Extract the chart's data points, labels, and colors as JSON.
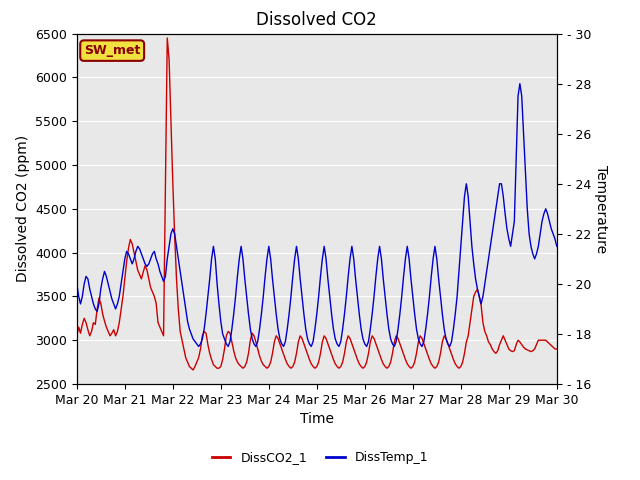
{
  "title": "Dissolved CO2",
  "xlabel": "Time",
  "ylabel_left": "Dissolved CO2 (ppm)",
  "ylabel_right": "Temperature",
  "ylim_left": [
    2500,
    6500
  ],
  "ylim_right": [
    16,
    30
  ],
  "yticks_left": [
    2500,
    3000,
    3500,
    4000,
    4500,
    5000,
    5500,
    6000,
    6500
  ],
  "yticks_right": [
    16,
    18,
    20,
    22,
    24,
    26,
    28,
    30
  ],
  "xtick_labels": [
    "Mar 20",
    "Mar 21",
    "Mar 22",
    "Mar 23",
    "Mar 24",
    "Mar 25",
    "Mar 26",
    "Mar 27",
    "Mar 28",
    "Mar 29",
    "Mar 30"
  ],
  "label_box": "SW_met",
  "legend_labels": [
    "DissCO2_1",
    "DissTemp_1"
  ],
  "line_colors": [
    "#cc0000",
    "#0000cc"
  ],
  "background_color": "#e8e8e8",
  "title_fontsize": 12,
  "axis_fontsize": 10,
  "tick_fontsize": 9,
  "co2_data": [
    3050,
    3150,
    3080,
    3180,
    3250,
    3200,
    3120,
    3050,
    3100,
    3200,
    3180,
    3350,
    3480,
    3420,
    3300,
    3220,
    3150,
    3100,
    3050,
    3080,
    3120,
    3050,
    3100,
    3200,
    3350,
    3500,
    3700,
    3900,
    4050,
    4150,
    4100,
    4000,
    3900,
    3800,
    3750,
    3700,
    3780,
    3850,
    3800,
    3700,
    3600,
    3550,
    3500,
    3420,
    3200,
    3150,
    3100,
    3050,
    4800,
    6450,
    6200,
    5500,
    4800,
    4200,
    3700,
    3350,
    3100,
    3000,
    2900,
    2800,
    2750,
    2700,
    2680,
    2660,
    2700,
    2750,
    2800,
    2900,
    3050,
    3100,
    3080,
    2950,
    2850,
    2780,
    2720,
    2700,
    2680,
    2680,
    2700,
    2780,
    2900,
    3050,
    3100,
    3080,
    2980,
    2880,
    2800,
    2750,
    2720,
    2700,
    2680,
    2700,
    2750,
    2850,
    3000,
    3080,
    3050,
    2980,
    2900,
    2820,
    2760,
    2720,
    2700,
    2680,
    2700,
    2750,
    2850,
    2980,
    3050,
    3020,
    2960,
    2900,
    2840,
    2780,
    2730,
    2700,
    2680,
    2700,
    2750,
    2850,
    2980,
    3050,
    3020,
    2960,
    2900,
    2840,
    2780,
    2730,
    2700,
    2680,
    2700,
    2750,
    2850,
    2980,
    3050,
    3020,
    2960,
    2900,
    2840,
    2780,
    2730,
    2700,
    2680,
    2700,
    2750,
    2850,
    2980,
    3050,
    3020,
    2960,
    2900,
    2840,
    2780,
    2730,
    2700,
    2680,
    2700,
    2750,
    2850,
    2980,
    3050,
    3020,
    2960,
    2900,
    2840,
    2780,
    2730,
    2700,
    2680,
    2700,
    2750,
    2850,
    2980,
    3050,
    3020,
    2960,
    2900,
    2840,
    2780,
    2730,
    2700,
    2680,
    2700,
    2750,
    2850,
    2980,
    3050,
    3020,
    2960,
    2900,
    2840,
    2780,
    2730,
    2700,
    2680,
    2700,
    2750,
    2850,
    2980,
    3050,
    3020,
    2960,
    2900,
    2840,
    2780,
    2730,
    2700,
    2680,
    2700,
    2750,
    2850,
    2980,
    3050,
    3200,
    3350,
    3500,
    3550,
    3580,
    3500,
    3400,
    3200,
    3100,
    3050,
    2980,
    2950,
    2900,
    2870,
    2850,
    2880,
    2950,
    3000,
    3050,
    3000,
    2950,
    2900,
    2880,
    2870,
    2880,
    2950,
    3000,
    2980,
    2950,
    2920,
    2900,
    2890,
    2880,
    2870,
    2880,
    2900,
    2950,
    3000,
    3000,
    3000,
    3000,
    3000,
    2980,
    2960,
    2940,
    2920,
    2900,
    2900
  ],
  "temp_data": [
    20.0,
    19.5,
    19.2,
    19.5,
    20.0,
    20.3,
    20.2,
    19.8,
    19.5,
    19.2,
    19.0,
    18.9,
    19.2,
    19.8,
    20.2,
    20.5,
    20.3,
    20.0,
    19.7,
    19.4,
    19.2,
    19.0,
    19.2,
    19.5,
    20.0,
    20.5,
    21.0,
    21.3,
    21.2,
    21.0,
    20.8,
    21.0,
    21.3,
    21.5,
    21.4,
    21.2,
    21.0,
    20.8,
    20.7,
    20.8,
    21.0,
    21.2,
    21.3,
    21.0,
    20.8,
    20.5,
    20.3,
    20.1,
    20.3,
    21.0,
    21.5,
    22.0,
    22.2,
    22.0,
    21.5,
    21.0,
    20.5,
    20.0,
    19.5,
    19.0,
    18.5,
    18.2,
    18.0,
    17.8,
    17.7,
    17.6,
    17.5,
    17.6,
    17.8,
    18.2,
    18.8,
    19.5,
    20.2,
    21.0,
    21.5,
    21.0,
    20.0,
    19.2,
    18.5,
    18.0,
    17.8,
    17.6,
    17.5,
    17.7,
    18.2,
    18.8,
    19.5,
    20.3,
    21.0,
    21.5,
    21.0,
    20.2,
    19.5,
    18.8,
    18.2,
    17.8,
    17.6,
    17.5,
    17.7,
    18.2,
    18.8,
    19.5,
    20.3,
    21.0,
    21.5,
    21.0,
    20.2,
    19.5,
    18.8,
    18.2,
    17.8,
    17.6,
    17.5,
    17.7,
    18.2,
    18.8,
    19.5,
    20.3,
    21.0,
    21.5,
    21.0,
    20.2,
    19.5,
    18.8,
    18.2,
    17.8,
    17.6,
    17.5,
    17.7,
    18.2,
    18.8,
    19.5,
    20.3,
    21.0,
    21.5,
    21.0,
    20.2,
    19.5,
    18.8,
    18.2,
    17.8,
    17.6,
    17.5,
    17.7,
    18.2,
    18.8,
    19.5,
    20.3,
    21.0,
    21.5,
    21.0,
    20.2,
    19.5,
    18.8,
    18.2,
    17.8,
    17.6,
    17.5,
    17.7,
    18.2,
    18.8,
    19.5,
    20.3,
    21.0,
    21.5,
    21.0,
    20.2,
    19.5,
    18.8,
    18.2,
    17.8,
    17.6,
    17.5,
    17.7,
    18.2,
    18.8,
    19.5,
    20.3,
    21.0,
    21.5,
    21.0,
    20.2,
    19.5,
    18.8,
    18.2,
    17.8,
    17.6,
    17.5,
    17.7,
    18.2,
    18.8,
    19.5,
    20.3,
    21.0,
    21.5,
    21.0,
    20.2,
    19.5,
    18.8,
    18.2,
    17.8,
    17.6,
    17.5,
    17.7,
    18.2,
    18.8,
    19.5,
    20.5,
    21.5,
    22.5,
    23.5,
    24.0,
    23.5,
    22.5,
    21.5,
    20.8,
    20.2,
    19.8,
    19.5,
    19.2,
    19.5,
    20.0,
    20.5,
    21.0,
    21.5,
    22.0,
    22.5,
    23.0,
    23.5,
    24.0,
    24.0,
    23.5,
    22.8,
    22.2,
    21.8,
    21.5,
    22.0,
    22.5,
    25.0,
    27.5,
    28.0,
    27.5,
    26.0,
    24.5,
    23.0,
    22.0,
    21.5,
    21.2,
    21.0,
    21.2,
    21.5,
    22.0,
    22.5,
    22.8,
    23.0,
    22.8,
    22.5,
    22.2,
    22.0,
    21.8,
    21.5
  ]
}
